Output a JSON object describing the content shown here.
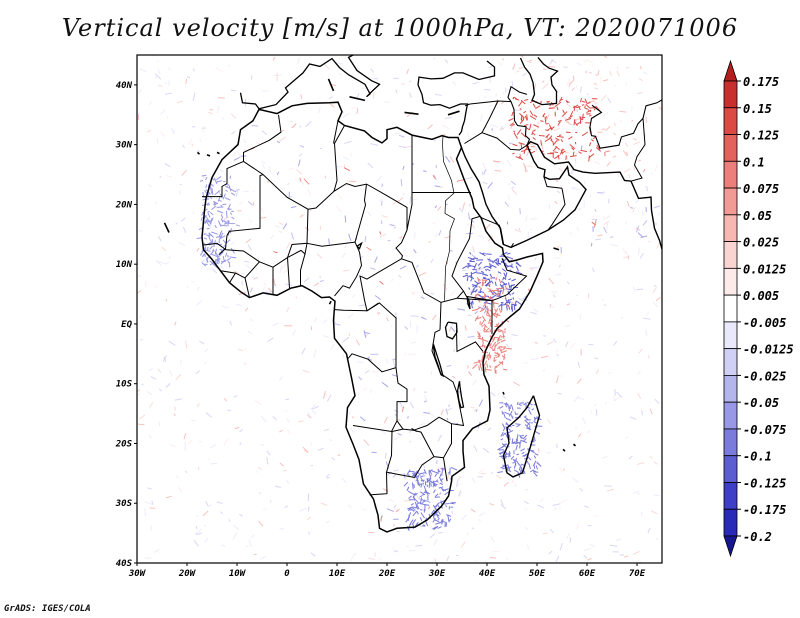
{
  "title": "Vertical velocity [m/s] at 1000hPa, VT: 2020071006",
  "credit": "GrADS: IGES/COLA",
  "map": {
    "lon_range": [
      -30,
      75
    ],
    "lat_range": [
      -40,
      45
    ],
    "lat_labels": [
      "40N",
      "30N",
      "20N",
      "10N",
      "EQ",
      "10S",
      "20S",
      "30S",
      "40S"
    ],
    "lon_labels": [
      "30W",
      "20W",
      "10W",
      "0",
      "10E",
      "20E",
      "30E",
      "40E",
      "50E",
      "60E",
      "70E"
    ]
  },
  "colorbar": {
    "labels": [
      "0.175",
      "0.15",
      "0.125",
      "0.1",
      "0.075",
      "0.05",
      "0.025",
      "0.0125",
      "0.005",
      "-0.005",
      "-0.0125",
      "-0.025",
      "-0.05",
      "-0.075",
      "-0.1",
      "-0.125",
      "-0.175",
      "-0.2"
    ],
    "colors": [
      "#b41e1e",
      "#c8302e",
      "#dc4a44",
      "#e4625c",
      "#ec7f79",
      "#f29a95",
      "#f7b7b3",
      "#fad4d1",
      "#fdebea",
      "#ffffff",
      "#e9e9fb",
      "#d0d0f6",
      "#b5b5ee",
      "#9898e6",
      "#7b7bdc",
      "#5d5dd2",
      "#3e3ec6",
      "#2a2ab8",
      "#161690"
    ]
  }
}
